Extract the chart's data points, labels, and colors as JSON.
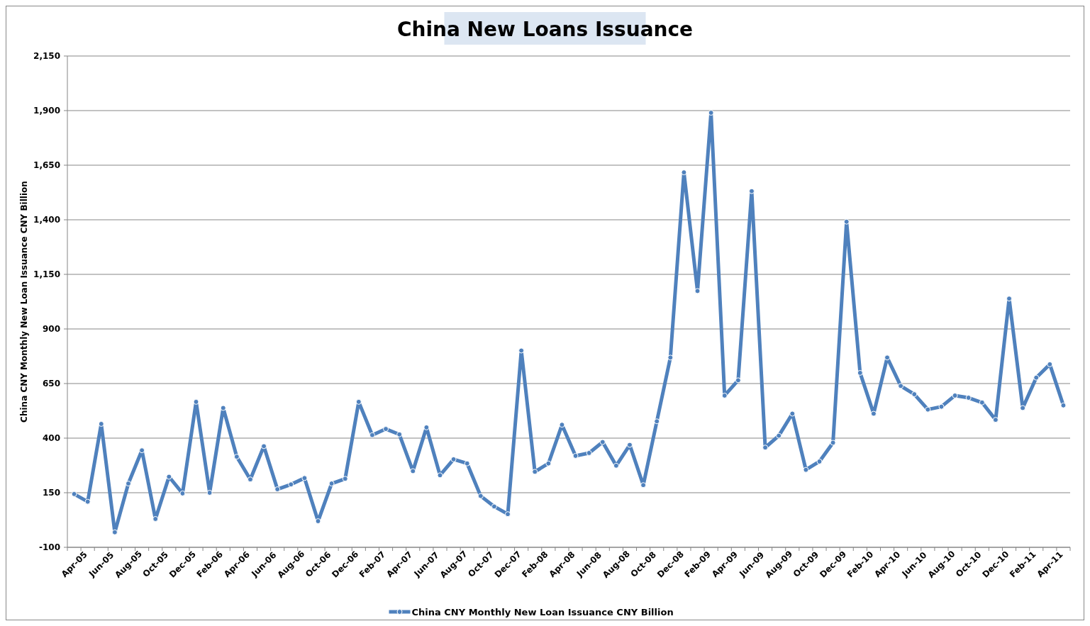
{
  "chart_data": {
    "type": "line",
    "title": "China New Loans Issuance",
    "ylabel": "China CNY Monthly New Loan Issuance CNY Billion",
    "categories": [
      "Apr-05",
      null,
      "Jun-05",
      null,
      "Aug-05",
      null,
      "Oct-05",
      null,
      "Dec-05",
      null,
      "Feb-06",
      null,
      "Apr-06",
      null,
      "Jun-06",
      null,
      "Aug-06",
      null,
      "Oct-06",
      null,
      "Dec-06",
      null,
      "Feb-07",
      null,
      "Apr-07",
      null,
      "Jun-07",
      null,
      "Aug-07",
      null,
      "Oct-07",
      null,
      "Dec-07",
      null,
      "Feb-08",
      null,
      "Apr-08",
      null,
      "Jun-08",
      null,
      "Aug-08",
      null,
      "Oct-08",
      null,
      "Dec-08",
      null,
      "Feb-09",
      null,
      "Apr-09",
      null,
      "Jun-09",
      null,
      "Aug-09",
      null,
      "Oct-09",
      null,
      "Dec-09",
      null,
      "Feb-10",
      null,
      "Apr-10",
      null,
      "Jun-10",
      null,
      "Aug-10",
      null,
      "Oct-10",
      null,
      "Dec-10",
      null,
      "Feb-11",
      null,
      "Apr-11",
      null
    ],
    "series": [
      {
        "name": "China CNY Monthly New Loan Issuance CNY Billion",
        "color": "#4f81bd",
        "values": [
          144,
          109,
          465,
          -31,
          192,
          344,
          30,
          223,
          147,
          566,
          150,
          538,
          315,
          211,
          363,
          166,
          188,
          217,
          20,
          192,
          214,
          566,
          414,
          442,
          417,
          249,
          449,
          230,
          303,
          284,
          135,
          87,
          52,
          801,
          246,
          284,
          461,
          319,
          332,
          382,
          274,
          369,
          185,
          477,
          769,
          1617,
          1074,
          1890,
          595,
          665,
          1531,
          357,
          411,
          512,
          255,
          293,
          379,
          1391,
          699,
          512,
          769,
          639,
          601,
          531,
          544,
          595,
          585,
          563,
          484,
          1039,
          538,
          677,
          738,
          550
        ]
      }
    ],
    "ylim": [
      -100,
      2150
    ],
    "yticks": [
      -100,
      150,
      400,
      650,
      900,
      {
        "value": 1150,
        "label": "1,150"
      },
      {
        "value": 1400,
        "label": "1,400"
      },
      {
        "value": 1650,
        "label": "1,650"
      },
      {
        "value": 1900,
        "label": "1,900"
      },
      {
        "value": 2150,
        "label": "2,150"
      }
    ],
    "grid": "y",
    "legend": "bottom",
    "marker": "circle",
    "line_style": "solid"
  }
}
